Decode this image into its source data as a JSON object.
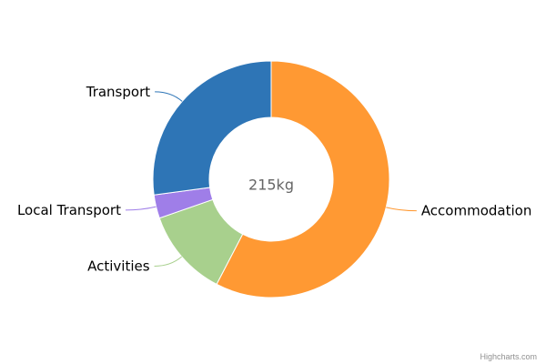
{
  "chart_data": {
    "type": "pie",
    "variant": "donut",
    "center_label": "215kg",
    "categories": [
      "Accommodation",
      "Activities",
      "Local Transport",
      "Transport"
    ],
    "values": [
      123.9,
      25.9,
      6.9,
      58.3
    ],
    "colors": [
      "#ff9933",
      "#a8d08d",
      "#9f7ee8",
      "#2e75b6"
    ],
    "series": [
      {
        "name": "Accommodation",
        "value": 123.9,
        "color": "#ff9933"
      },
      {
        "name": "Activities",
        "value": 25.9,
        "color": "#a8d08d"
      },
      {
        "name": "Local Transport",
        "value": 6.9,
        "color": "#9f7ee8"
      },
      {
        "name": "Transport",
        "value": 58.3,
        "color": "#2e75b6"
      }
    ]
  },
  "credits": {
    "text": "Highcharts.com"
  }
}
